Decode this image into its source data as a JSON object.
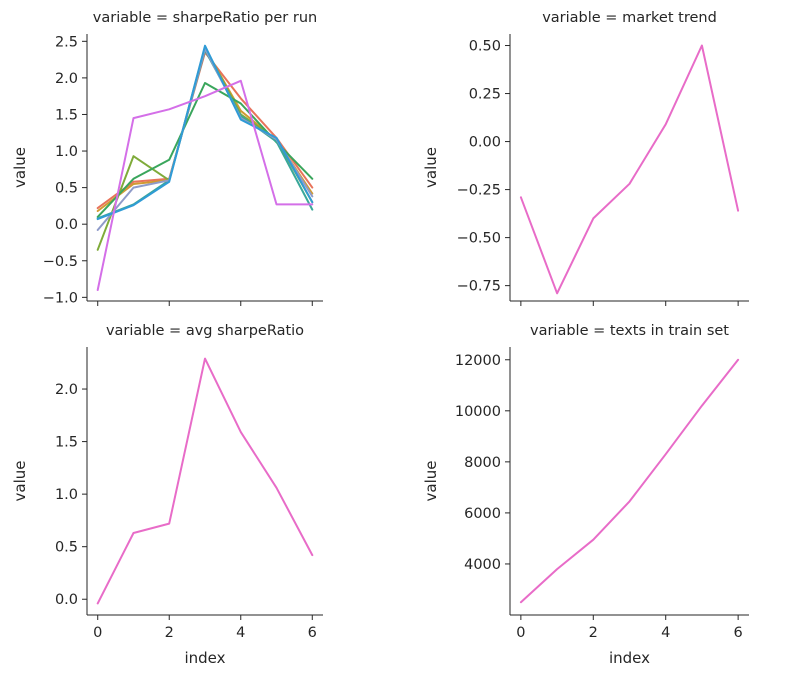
{
  "chart_data": [
    {
      "type": "line",
      "title": "variable = sharpeRatio per run",
      "xlabel": "",
      "ylabel": "value",
      "x": [
        0,
        1,
        2,
        3,
        4,
        5,
        6
      ],
      "xlim": [
        -0.3,
        6.3
      ],
      "ylim": [
        -1.05,
        2.6
      ],
      "xticks": [
        0,
        2,
        4,
        6
      ],
      "yticks": [
        -1.0,
        -0.5,
        0.0,
        0.5,
        1.0,
        1.5,
        2.0,
        2.5
      ],
      "xtick_labels_visible": false,
      "series": [
        {
          "color": "#e8735a",
          "values": [
            0.22,
            0.58,
            0.62,
            2.35,
            1.72,
            1.18,
            0.5
          ]
        },
        {
          "color": "#d09a32",
          "values": [
            0.18,
            0.55,
            0.6,
            2.4,
            1.55,
            1.15,
            0.42
          ]
        },
        {
          "color": "#7fab3a",
          "values": [
            -0.35,
            0.93,
            0.6,
            2.42,
            1.5,
            1.16,
            0.3
          ]
        },
        {
          "color": "#3aa65c",
          "values": [
            0.1,
            0.62,
            0.88,
            1.93,
            1.65,
            1.12,
            0.62
          ]
        },
        {
          "color": "#3aa89a",
          "values": [
            0.08,
            0.27,
            0.6,
            2.38,
            1.48,
            1.13,
            0.2
          ]
        },
        {
          "color": "#8f9bc9",
          "values": [
            -0.08,
            0.5,
            0.6,
            2.4,
            1.45,
            1.16,
            0.38
          ]
        },
        {
          "color": "#2f9bd6",
          "values": [
            0.07,
            0.26,
            0.58,
            2.44,
            1.43,
            1.18,
            0.3
          ]
        },
        {
          "color": "#d46fe8",
          "values": [
            -0.9,
            1.45,
            1.57,
            1.75,
            1.96,
            0.27,
            0.27
          ]
        }
      ]
    },
    {
      "type": "line",
      "title": "variable = market trend",
      "xlabel": "",
      "ylabel": "value",
      "x": [
        0,
        1,
        2,
        3,
        4,
        5,
        6
      ],
      "xlim": [
        -0.3,
        6.3
      ],
      "ylim": [
        -0.83,
        0.56
      ],
      "xticks": [
        0,
        2,
        4,
        6
      ],
      "yticks": [
        -0.75,
        -0.5,
        -0.25,
        0.0,
        0.25,
        0.5
      ],
      "ytick_labels": [
        "−0.75",
        "−0.50",
        "−0.25",
        "0.00",
        "0.25",
        "0.50"
      ],
      "xtick_labels_visible": false,
      "series": [
        {
          "color": "#e86cc8",
          "values": [
            -0.29,
            -0.79,
            -0.4,
            -0.22,
            0.09,
            0.5,
            -0.36
          ]
        }
      ]
    },
    {
      "type": "line",
      "title": "variable = avg sharpeRatio",
      "xlabel": "index",
      "ylabel": "value",
      "x": [
        0,
        1,
        2,
        3,
        4,
        5,
        6
      ],
      "xlim": [
        -0.3,
        6.3
      ],
      "ylim": [
        -0.15,
        2.4
      ],
      "xticks": [
        0,
        2,
        4,
        6
      ],
      "yticks": [
        0.0,
        0.5,
        1.0,
        1.5,
        2.0
      ],
      "xtick_labels_visible": true,
      "series": [
        {
          "color": "#e86cc8",
          "values": [
            -0.04,
            0.63,
            0.72,
            2.29,
            1.59,
            1.06,
            0.42
          ]
        }
      ]
    },
    {
      "type": "line",
      "title": "variable = texts in train set",
      "xlabel": "index",
      "ylabel": "value",
      "x": [
        0,
        1,
        2,
        3,
        4,
        5,
        6
      ],
      "xlim": [
        -0.3,
        6.3
      ],
      "ylim": [
        2000,
        12500
      ],
      "xticks": [
        0,
        2,
        4,
        6
      ],
      "yticks": [
        4000,
        6000,
        8000,
        10000,
        12000
      ],
      "xtick_labels_visible": true,
      "series": [
        {
          "color": "#e86cc8",
          "values": [
            2500,
            3800,
            4950,
            6450,
            8300,
            10200,
            12000
          ]
        }
      ]
    }
  ]
}
